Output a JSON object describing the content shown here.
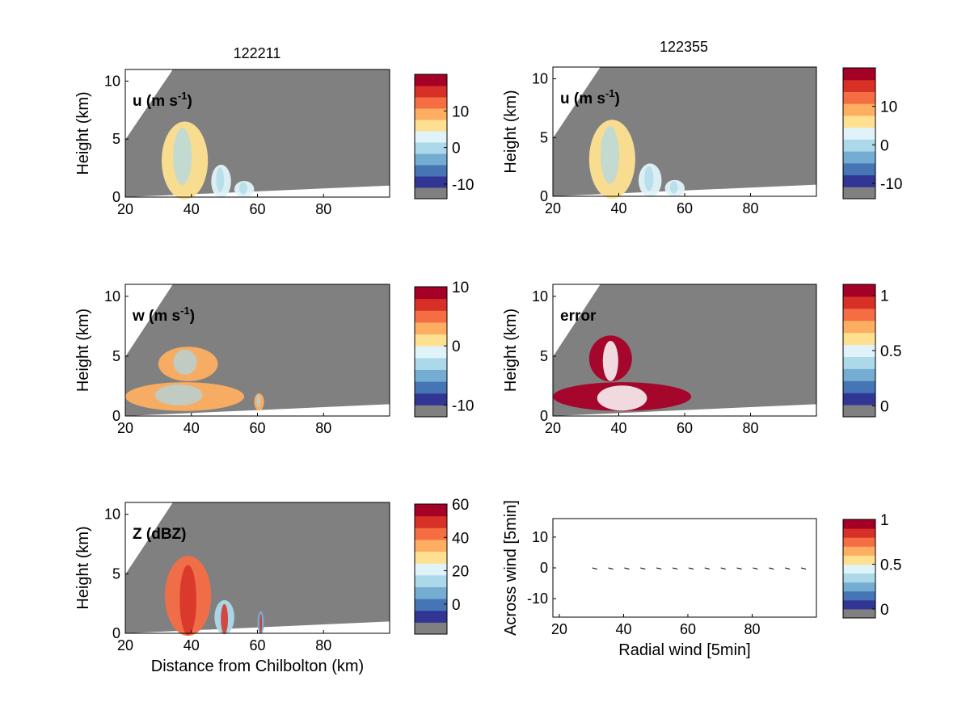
{
  "figure": {
    "column_titles": [
      "122211",
      "122355"
    ],
    "gray": "#808080",
    "palette": [
      "#313695",
      "#4575b4",
      "#74add1",
      "#abd9e9",
      "#e0f3f8",
      "#fee090",
      "#fdae61",
      "#f46d43",
      "#d73027",
      "#a50026"
    ]
  },
  "chart_data": [
    {
      "id": "u-left",
      "type": "heatmap",
      "title": "122211",
      "label": "u (m s-1)",
      "label_parts": [
        "u (m s",
        "-1",
        ")"
      ],
      "xlabel": "",
      "ylabel": "Height (km)",
      "xlim": [
        20,
        100
      ],
      "ylim": [
        0,
        11
      ],
      "xticks": [
        20,
        40,
        60,
        80
      ],
      "yticks": [
        0,
        5,
        10
      ],
      "colorbar": {
        "ticks": [
          -10,
          0,
          10
        ],
        "range": [
          -14,
          20
        ]
      },
      "features": [
        {
          "kind": "cell",
          "x": [
            31,
            45
          ],
          "y": [
            0,
            7
          ],
          "value": 5
        },
        {
          "kind": "cell",
          "x": [
            46,
            52
          ],
          "y": [
            0,
            3
          ],
          "value": 1
        },
        {
          "kind": "cell",
          "x": [
            53,
            59
          ],
          "y": [
            0,
            1.5
          ],
          "value": 0
        }
      ]
    },
    {
      "id": "u-right",
      "type": "heatmap",
      "title": "122355",
      "label": "u (m s-1)",
      "label_parts": [
        "u (m s",
        "-1",
        ")"
      ],
      "xlabel": "",
      "ylabel": "Height (km)",
      "xlim": [
        20,
        100
      ],
      "ylim": [
        0,
        11
      ],
      "xticks": [
        20,
        40,
        60,
        80
      ],
      "yticks": [
        0,
        5,
        10
      ],
      "colorbar": {
        "ticks": [
          -10,
          0,
          10
        ],
        "range": [
          -14,
          20
        ]
      },
      "features": [
        {
          "kind": "cell",
          "x": [
            31,
            45
          ],
          "y": [
            0,
            7
          ],
          "value": 5
        },
        {
          "kind": "cell",
          "x": [
            46,
            53
          ],
          "y": [
            0,
            3
          ],
          "value": 1
        },
        {
          "kind": "cell",
          "x": [
            54,
            60
          ],
          "y": [
            0,
            1.5
          ],
          "value": 0
        }
      ]
    },
    {
      "id": "w-left",
      "type": "heatmap",
      "label": "w (m s-1)",
      "label_parts": [
        "w (m s",
        "-1",
        ")"
      ],
      "xlabel": "",
      "ylabel": "Height (km)",
      "xlim": [
        20,
        100
      ],
      "ylim": [
        0,
        11
      ],
      "xticks": [
        20,
        40,
        60,
        80
      ],
      "yticks": [
        0,
        5,
        10
      ],
      "colorbar": {
        "ticks": [
          -10,
          0,
          10
        ],
        "range": [
          -12,
          10
        ]
      },
      "features": [
        {
          "kind": "cell",
          "x": [
            30,
            48
          ],
          "y": [
            3,
            6
          ],
          "value": 2
        },
        {
          "kind": "cell",
          "x": [
            20,
            56
          ],
          "y": [
            0.5,
            3
          ],
          "value": 3
        },
        {
          "kind": "cell",
          "x": [
            59,
            62
          ],
          "y": [
            0.5,
            2
          ],
          "value": 3
        }
      ]
    },
    {
      "id": "error-right",
      "type": "heatmap",
      "label": "error",
      "label_parts": [
        "error",
        "",
        ""
      ],
      "xlabel": "",
      "ylabel": "Height (km)",
      "xlim": [
        20,
        100
      ],
      "ylim": [
        0,
        11
      ],
      "xticks": [
        20,
        40,
        60,
        80
      ],
      "yticks": [
        0,
        5,
        10
      ],
      "colorbar": {
        "ticks": [
          0,
          0.5,
          1
        ],
        "range": [
          -0.1,
          1.1
        ]
      },
      "features": [
        {
          "kind": "cell",
          "x": [
            31,
            44
          ],
          "y": [
            3,
            7
          ],
          "value": 1
        },
        {
          "kind": "cell",
          "x": [
            20,
            62
          ],
          "y": [
            0.5,
            3
          ],
          "value": 1
        }
      ]
    },
    {
      "id": "z-left",
      "type": "heatmap",
      "label": "Z (dBZ)",
      "label_parts": [
        "Z (dBZ)",
        "",
        ""
      ],
      "xlabel": "Distance from Chilbolton (km)",
      "ylabel": "Height (km)",
      "xlim": [
        20,
        100
      ],
      "ylim": [
        0,
        11
      ],
      "xticks": [
        20,
        40,
        60,
        80
      ],
      "yticks": [
        0,
        5,
        10
      ],
      "colorbar": {
        "ticks": [
          0,
          20,
          40,
          60
        ],
        "range": [
          -18,
          60
        ]
      },
      "features": [
        {
          "kind": "cell",
          "x": [
            32,
            46
          ],
          "y": [
            0,
            7
          ],
          "value": 40
        },
        {
          "kind": "cell",
          "x": [
            47,
            53
          ],
          "y": [
            0,
            3
          ],
          "value": 10
        },
        {
          "kind": "cell",
          "x": [
            60,
            62
          ],
          "y": [
            0,
            2
          ],
          "value": 0
        }
      ]
    },
    {
      "id": "wind-right",
      "type": "scatter",
      "xlabel": "Radial wind [5min]",
      "ylabel": "Across wind [5min]",
      "xlim": [
        18,
        100
      ],
      "ylim": [
        -16,
        16
      ],
      "xticks": [
        20,
        40,
        60,
        80
      ],
      "yticks": [
        -10,
        0,
        10
      ],
      "colorbar": {
        "ticks": [
          0,
          0.5,
          1
        ],
        "range": [
          -0.1,
          1
        ]
      },
      "x": [
        31,
        36,
        41,
        46,
        51,
        56,
        61,
        66,
        71,
        76,
        81,
        86,
        91,
        96
      ],
      "y": [
        0,
        0,
        0,
        0,
        0,
        0,
        0,
        0,
        0,
        0,
        0,
        0,
        0,
        0
      ]
    }
  ]
}
